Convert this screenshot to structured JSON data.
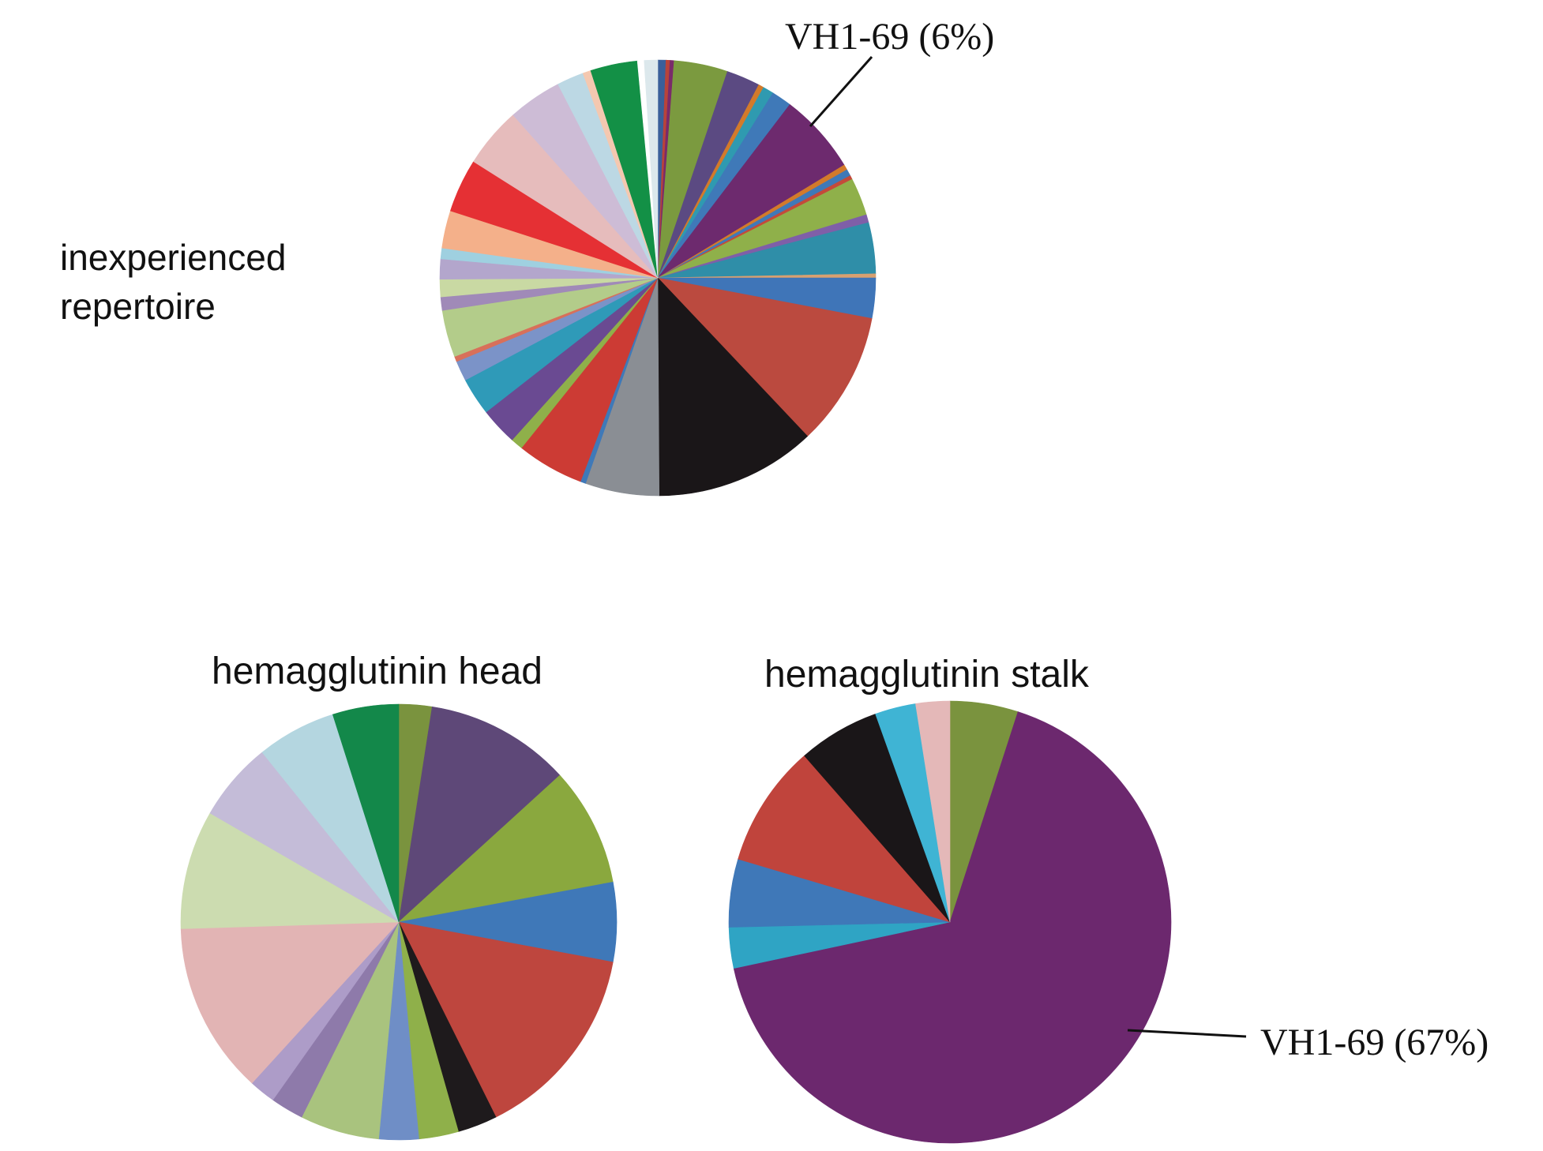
{
  "labels": {
    "inexperienced_line1": "inexperienced",
    "inexperienced_line2": "repertoire",
    "head": "hemagglutinin head",
    "stalk": "hemagglutinin stalk",
    "vh169_top": "VH1-69 (6%)",
    "vh169_bottom": "VH1-69 (67%)"
  },
  "chart_data": [
    {
      "type": "pie",
      "title": "inexperienced repertoire",
      "annotation": "VH1-69 (6%)",
      "slices": [
        {
          "value": 0.6,
          "color": "#3a5f9a"
        },
        {
          "value": 0.3,
          "color": "#b8433a"
        },
        {
          "value": 0.3,
          "color": "#7a2a6a"
        },
        {
          "value": 4.0,
          "color": "#7b9a3f"
        },
        {
          "value": 2.5,
          "color": "#5b4a82"
        },
        {
          "value": 0.4,
          "color": "#d37a2a"
        },
        {
          "value": 0.8,
          "color": "#2f9ab0"
        },
        {
          "value": 1.5,
          "color": "#3f79b8"
        },
        {
          "value": 6.0,
          "color": "#6d2a6e"
        },
        {
          "value": 0.4,
          "color": "#d37a2a"
        },
        {
          "value": 0.5,
          "color": "#3f79b8"
        },
        {
          "value": 0.3,
          "color": "#c44a3a"
        },
        {
          "value": 2.8,
          "color": "#8fb04a"
        },
        {
          "value": 0.6,
          "color": "#7f5fa8"
        },
        {
          "value": 3.8,
          "color": "#2f8ea8"
        },
        {
          "value": 0.3,
          "color": "#d8a070"
        },
        {
          "value": 3.0,
          "color": "#3f75b8"
        },
        {
          "value": 10.0,
          "color": "#bb4a3f"
        },
        {
          "value": 12.0,
          "color": "#1a1618"
        },
        {
          "value": 5.5,
          "color": "#8a8e94"
        },
        {
          "value": 0.4,
          "color": "#3f79b8"
        },
        {
          "value": 5.0,
          "color": "#cc3b34"
        },
        {
          "value": 0.9,
          "color": "#8fb04a"
        },
        {
          "value": 2.8,
          "color": "#6a4a92"
        },
        {
          "value": 2.8,
          "color": "#2f9ab8"
        },
        {
          "value": 1.5,
          "color": "#7b93c8"
        },
        {
          "value": 0.4,
          "color": "#d8705a"
        },
        {
          "value": 3.5,
          "color": "#b3cc8a"
        },
        {
          "value": 1.0,
          "color": "#a08ab8"
        },
        {
          "value": 1.3,
          "color": "#c9d9a3"
        },
        {
          "value": 1.5,
          "color": "#b3a6cc"
        },
        {
          "value": 0.8,
          "color": "#9fd0e0"
        },
        {
          "value": 2.8,
          "color": "#f4b08a"
        },
        {
          "value": 4.0,
          "color": "#e53034"
        },
        {
          "value": 4.5,
          "color": "#e6bcbc"
        },
        {
          "value": 4.0,
          "color": "#cdbcd6"
        },
        {
          "value": 2.0,
          "color": "#bcd8e4"
        },
        {
          "value": 0.6,
          "color": "#f4c8b0"
        },
        {
          "value": 3.5,
          "color": "#139046"
        },
        {
          "value": 0.5,
          "color": "#ffffff"
        },
        {
          "value": 1.0,
          "color": "#dce8ec"
        }
      ]
    },
    {
      "type": "pie",
      "title": "hemagglutinin head",
      "slices": [
        {
          "value": 2.5,
          "color": "#7a933e"
        },
        {
          "value": 11.0,
          "color": "#5e4878"
        },
        {
          "value": 9.0,
          "color": "#8aa83e"
        },
        {
          "value": 6.0,
          "color": "#3f78b8"
        },
        {
          "value": 15.0,
          "color": "#be463e"
        },
        {
          "value": 3.0,
          "color": "#1e1a1c"
        },
        {
          "value": 3.0,
          "color": "#8fb04a"
        },
        {
          "value": 3.0,
          "color": "#6f8ec6"
        },
        {
          "value": 6.0,
          "color": "#a9c37e"
        },
        {
          "value": 2.5,
          "color": "#8e7aaa"
        },
        {
          "value": 2.0,
          "color": "#ad9cc8"
        },
        {
          "value": 13.0,
          "color": "#e2b4b4"
        },
        {
          "value": 9.0,
          "color": "#ccdcb0"
        },
        {
          "value": 6.0,
          "color": "#c4bcd8"
        },
        {
          "value": 6.0,
          "color": "#b4d6e0"
        },
        {
          "value": 5.0,
          "color": "#13884a"
        }
      ]
    },
    {
      "type": "pie",
      "title": "hemagglutinin stalk",
      "annotation": "VH1-69 (67%)",
      "slices": [
        {
          "value": 5.0,
          "color": "#7a933e"
        },
        {
          "value": 67.0,
          "color": "#6c286e"
        },
        {
          "value": 3.0,
          "color": "#2fa4c4"
        },
        {
          "value": 5.0,
          "color": "#3f78b8"
        },
        {
          "value": 9.0,
          "color": "#c0443c"
        },
        {
          "value": 6.0,
          "color": "#1a1618"
        },
        {
          "value": 3.0,
          "color": "#3fb4d4"
        },
        {
          "value": 2.5,
          "color": "#e4b8b8"
        }
      ]
    }
  ]
}
